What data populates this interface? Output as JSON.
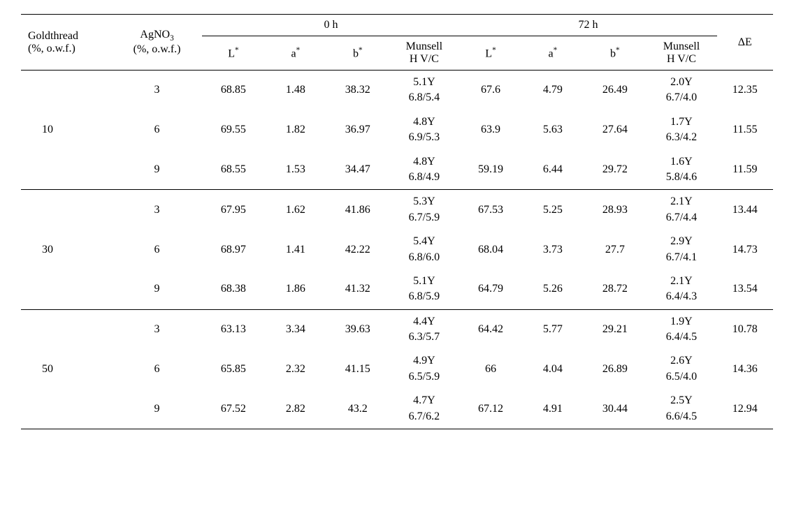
{
  "headers": {
    "goldthread_l1": "Goldthread",
    "goldthread_l2": "(%, o.w.f.)",
    "agno3_l1": "AgNO",
    "agno3_sub": "3",
    "agno3_l2": "(%, o.w.f.)",
    "group_0h": "0 h",
    "group_72h": "72 h",
    "L": "L",
    "a": "a",
    "b": "b",
    "star": "*",
    "munsell_l1": "Munsell",
    "munsell_l2": "H V/C",
    "deltaE": "ΔE"
  },
  "groups": [
    {
      "goldthread": "10",
      "rows": [
        {
          "agno": "3",
          "L0": "68.85",
          "a0": "1.48",
          "b0": "38.32",
          "m0a": "5.1Y",
          "m0b": "6.8/5.4",
          "L72": "67.6",
          "a72": "4.79",
          "b72": "26.49",
          "m72a": "2.0Y",
          "m72b": "6.7/4.0",
          "dE": "12.35"
        },
        {
          "agno": "6",
          "L0": "69.55",
          "a0": "1.82",
          "b0": "36.97",
          "m0a": "4.8Y",
          "m0b": "6.9/5.3",
          "L72": "63.9",
          "a72": "5.63",
          "b72": "27.64",
          "m72a": "1.7Y",
          "m72b": "6.3/4.2",
          "dE": "11.55"
        },
        {
          "agno": "9",
          "L0": "68.55",
          "a0": "1.53",
          "b0": "34.47",
          "m0a": "4.8Y",
          "m0b": "6.8/4.9",
          "L72": "59.19",
          "a72": "6.44",
          "b72": "29.72",
          "m72a": "1.6Y",
          "m72b": "5.8/4.6",
          "dE": "11.59"
        }
      ]
    },
    {
      "goldthread": "30",
      "rows": [
        {
          "agno": "3",
          "L0": "67.95",
          "a0": "1.62",
          "b0": "41.86",
          "m0a": "5.3Y",
          "m0b": "6.7/5.9",
          "L72": "67.53",
          "a72": "5.25",
          "b72": "28.93",
          "m72a": "2.1Y",
          "m72b": "6.7/4.4",
          "dE": "13.44"
        },
        {
          "agno": "6",
          "L0": "68.97",
          "a0": "1.41",
          "b0": "42.22",
          "m0a": "5.4Y",
          "m0b": "6.8/6.0",
          "L72": "68.04",
          "a72": "3.73",
          "b72": "27.7",
          "m72a": "2.9Y",
          "m72b": "6.7/4.1",
          "dE": "14.73"
        },
        {
          "agno": "9",
          "L0": "68.38",
          "a0": "1.86",
          "b0": "41.32",
          "m0a": "5.1Y",
          "m0b": "6.8/5.9",
          "L72": "64.79",
          "a72": "5.26",
          "b72": "28.72",
          "m72a": "2.1Y",
          "m72b": "6.4/4.3",
          "dE": "13.54"
        }
      ]
    },
    {
      "goldthread": "50",
      "rows": [
        {
          "agno": "3",
          "L0": "63.13",
          "a0": "3.34",
          "b0": "39.63",
          "m0a": "4.4Y",
          "m0b": "6.3/5.7",
          "L72": "64.42",
          "a72": "5.77",
          "b72": "29.21",
          "m72a": "1.9Y",
          "m72b": "6.4/4.5",
          "dE": "10.78"
        },
        {
          "agno": "6",
          "L0": "65.85",
          "a0": "2.32",
          "b0": "41.15",
          "m0a": "4.9Y",
          "m0b": "6.5/5.9",
          "L72": "66",
          "a72": "4.04",
          "b72": "26.89",
          "m72a": "2.6Y",
          "m72b": "6.5/4.0",
          "dE": "14.36"
        },
        {
          "agno": "9",
          "L0": "67.52",
          "a0": "2.82",
          "b0": "43.2",
          "m0a": "4.7Y",
          "m0b": "6.7/6.2",
          "L72": "67.12",
          "a72": "4.91",
          "b72": "30.44",
          "m72a": "2.5Y",
          "m72b": "6.6/4.5",
          "dE": "12.94"
        }
      ]
    }
  ]
}
